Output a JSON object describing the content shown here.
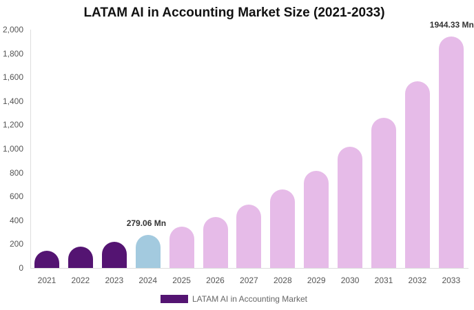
{
  "chart_data": {
    "type": "bar",
    "title": "LATAM AI in Accounting Market Size (2021-2033)",
    "xlabel": "",
    "ylabel": "",
    "ylim": [
      0,
      2000
    ],
    "yticks": [
      "0",
      "200",
      "400",
      "600",
      "800",
      "1,000",
      "1,200",
      "1,400",
      "1,600",
      "1,800",
      "2,000"
    ],
    "categories": [
      "2021",
      "2022",
      "2023",
      "2024",
      "2025",
      "2026",
      "2027",
      "2028",
      "2029",
      "2030",
      "2031",
      "2032",
      "2033"
    ],
    "series": [
      {
        "name": "LATAM AI in Accounting Market",
        "values": [
          145,
          179,
          220,
          279.06,
          347,
          428,
          532,
          659,
          815,
          1017,
          1260,
          1566,
          1944.33
        ]
      }
    ],
    "bar_colors": [
      "#541472",
      "#541472",
      "#541472",
      "#a3cadf",
      "#e6bbe8",
      "#e6bbe8",
      "#e6bbe8",
      "#e6bbe8",
      "#e6bbe8",
      "#e6bbe8",
      "#e6bbe8",
      "#e6bbe8",
      "#e6bbe8"
    ],
    "annotations": [
      {
        "category": "2024",
        "text": "279.06 Mn"
      },
      {
        "category": "2033",
        "text": "1944.33 Mn"
      }
    ],
    "legend": {
      "label": "LATAM AI in Accounting Market",
      "color": "#541472",
      "position": "bottom"
    },
    "grid": false
  }
}
